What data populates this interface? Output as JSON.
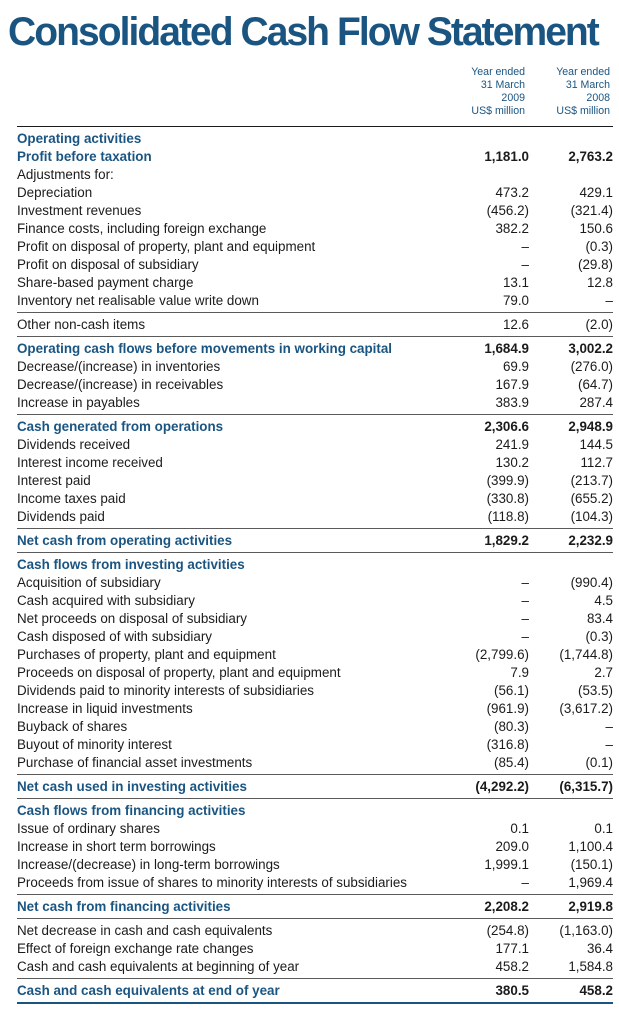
{
  "title": "Consolidated Cash Flow Statement",
  "columns": [
    {
      "lines": [
        "Year ended",
        "31 March",
        "2009",
        "US$ million"
      ]
    },
    {
      "lines": [
        "Year ended",
        "31 March",
        "2008",
        "US$ million"
      ]
    }
  ],
  "sections": [
    {
      "rows": [
        {
          "label": "Operating activities",
          "v1": "",
          "v2": "",
          "hl": true
        },
        {
          "label": "Profit before taxation",
          "v1": "1,181.0",
          "v2": "2,763.2",
          "hl": true
        },
        {
          "label": "Adjustments for:",
          "v1": "",
          "v2": ""
        },
        {
          "label": "Depreciation",
          "v1": "473.2",
          "v2": "429.1"
        },
        {
          "label": "Investment revenues",
          "v1": "(456.2)",
          "v2": "(321.4)"
        },
        {
          "label": "Finance costs, including foreign exchange",
          "v1": "382.2",
          "v2": "150.6"
        },
        {
          "label": "Profit on disposal of property, plant and equipment",
          "v1": "–",
          "v2": "(0.3)"
        },
        {
          "label": "Profit on disposal of subsidiary",
          "v1": "–",
          "v2": "(29.8)"
        },
        {
          "label": "Share-based payment charge",
          "v1": "13.1",
          "v2": "12.8"
        },
        {
          "label": "Inventory net realisable value write down",
          "v1": "79.0",
          "v2": "–"
        }
      ]
    },
    {
      "rows": [
        {
          "label": "Other non-cash items",
          "v1": "12.6",
          "v2": "(2.0)"
        }
      ]
    },
    {
      "rows": [
        {
          "label": "Operating cash flows before movements in working capital",
          "v1": "1,684.9",
          "v2": "3,002.2",
          "hl": true
        },
        {
          "label": "Decrease/(increase) in inventories",
          "v1": "69.9",
          "v2": "(276.0)"
        },
        {
          "label": "Decrease/(increase) in receivables",
          "v1": "167.9",
          "v2": "(64.7)"
        },
        {
          "label": "Increase in payables",
          "v1": "383.9",
          "v2": "287.4"
        }
      ]
    },
    {
      "rows": [
        {
          "label": "Cash generated from operations",
          "v1": "2,306.6",
          "v2": "2,948.9",
          "hl": true
        },
        {
          "label": "Dividends received",
          "v1": "241.9",
          "v2": "144.5"
        },
        {
          "label": "Interest income received",
          "v1": "130.2",
          "v2": "112.7"
        },
        {
          "label": "Interest paid",
          "v1": "(399.9)",
          "v2": "(213.7)"
        },
        {
          "label": "Income taxes paid",
          "v1": "(330.8)",
          "v2": "(655.2)"
        },
        {
          "label": "Dividends paid",
          "v1": "(118.8)",
          "v2": "(104.3)"
        }
      ]
    },
    {
      "rows": [
        {
          "label": "Net cash from operating activities",
          "v1": "1,829.2",
          "v2": "2,232.9",
          "hl": true
        }
      ]
    },
    {
      "rows": [
        {
          "label": "Cash flows from investing activities",
          "v1": "",
          "v2": "",
          "hl": true
        },
        {
          "label": "Acquisition of subsidiary",
          "v1": "–",
          "v2": "(990.4)"
        },
        {
          "label": "Cash acquired with subsidiary",
          "v1": "–",
          "v2": "4.5"
        },
        {
          "label": "Net proceeds on disposal of subsidiary",
          "v1": "–",
          "v2": "83.4"
        },
        {
          "label": "Cash disposed of with subsidiary",
          "v1": "–",
          "v2": "(0.3)"
        },
        {
          "label": "Purchases of property, plant and equipment",
          "v1": "(2,799.6)",
          "v2": "(1,744.8)"
        },
        {
          "label": "Proceeds on disposal of property, plant and equipment",
          "v1": "7.9",
          "v2": "2.7"
        },
        {
          "label": "Dividends paid to minority interests of subsidiaries",
          "v1": "(56.1)",
          "v2": "(53.5)"
        },
        {
          "label": "Increase in liquid investments",
          "v1": "(961.9)",
          "v2": "(3,617.2)"
        },
        {
          "label": "Buyback of shares",
          "v1": "(80.3)",
          "v2": "–"
        },
        {
          "label": "Buyout of minority interest",
          "v1": "(316.8)",
          "v2": "–"
        },
        {
          "label": "Purchase of financial asset investments",
          "v1": "(85.4)",
          "v2": "(0.1)"
        }
      ]
    },
    {
      "rows": [
        {
          "label": "Net cash used in investing activities",
          "v1": "(4,292.2)",
          "v2": "(6,315.7)",
          "hl": true
        }
      ]
    },
    {
      "rows": [
        {
          "label": "Cash flows from financing activities",
          "v1": "",
          "v2": "",
          "hl": true
        },
        {
          "label": "Issue of ordinary shares",
          "v1": "0.1",
          "v2": "0.1"
        },
        {
          "label": "Increase in short term borrowings",
          "v1": "209.0",
          "v2": "1,100.4"
        },
        {
          "label": "Increase/(decrease) in long-term borrowings",
          "v1": "1,999.1",
          "v2": "(150.1)"
        },
        {
          "label": "Proceeds from issue of shares to minority interests of subsidiaries",
          "v1": "–",
          "v2": "1,969.4"
        }
      ]
    },
    {
      "rows": [
        {
          "label": "Net cash from financing activities",
          "v1": "2,208.2",
          "v2": "2,919.8",
          "hl": true
        }
      ]
    },
    {
      "rows": [
        {
          "label": "Net decrease in cash and cash equivalents",
          "v1": "(254.8)",
          "v2": "(1,163.0)"
        },
        {
          "label": "Effect of foreign exchange rate changes",
          "v1": "177.1",
          "v2": "36.4"
        },
        {
          "label": "Cash and cash equivalents at beginning of year",
          "v1": "458.2",
          "v2": "1,584.8"
        }
      ]
    },
    {
      "rows": [
        {
          "label": "Cash and cash equivalents at end of year",
          "v1": "380.5",
          "v2": "458.2",
          "hl": true
        }
      ]
    }
  ]
}
